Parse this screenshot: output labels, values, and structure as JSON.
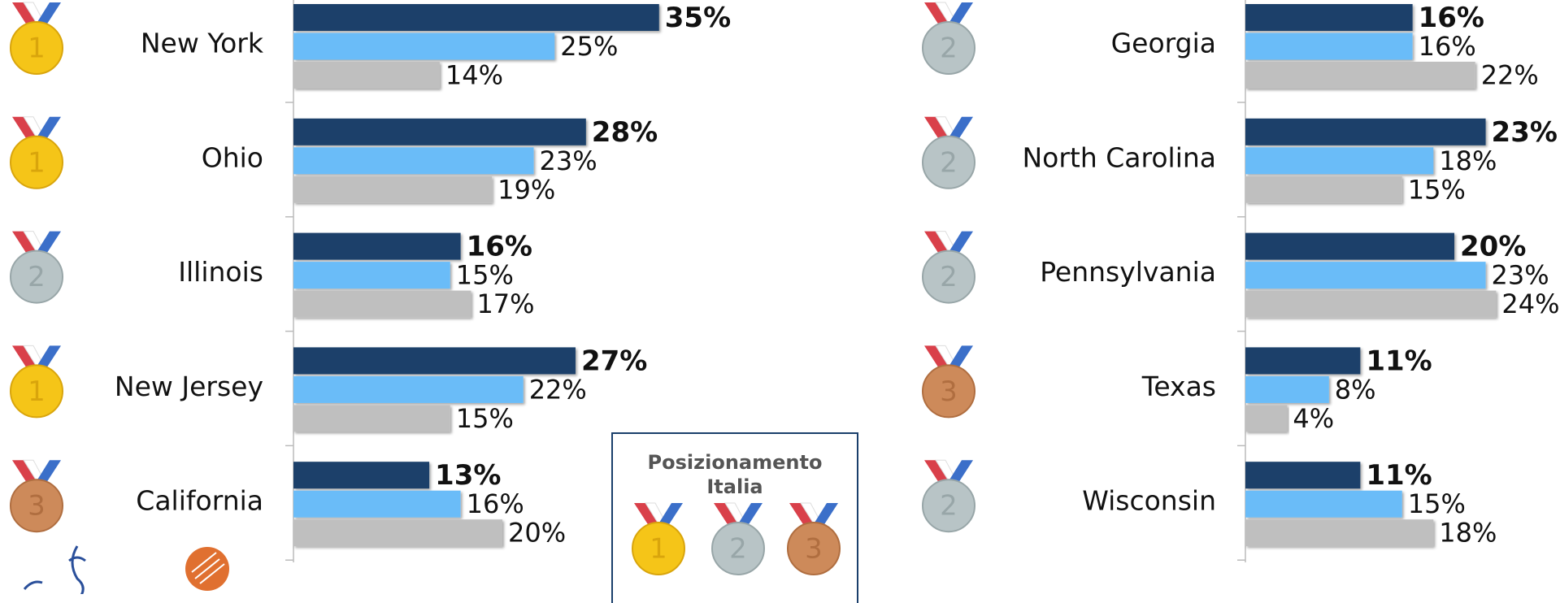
{
  "chart_data": [
    {
      "type": "bar",
      "categories": [
        "New York",
        "Ohio",
        "Illinois",
        "New Jersey",
        "California"
      ],
      "medals": [
        1,
        1,
        2,
        1,
        3
      ],
      "xlim": [
        0,
        40
      ],
      "series": [
        {
          "color": "#1a3f6b",
          "values": [
            35,
            28,
            16,
            27,
            13
          ],
          "value_labels": [
            "35%",
            "28%",
            "16%",
            "27%",
            "13%"
          ]
        },
        {
          "color": "#6bbcf8",
          "values": [
            25,
            23,
            15,
            22,
            16
          ],
          "value_labels": [
            "25%",
            "23%",
            "15%",
            "22%",
            "16%"
          ]
        },
        {
          "color": "#bfbfbf",
          "values": [
            14,
            19,
            17,
            15,
            20
          ],
          "value_labels": [
            "14%",
            "19%",
            "17%",
            "15%",
            "20%"
          ]
        }
      ]
    },
    {
      "type": "bar",
      "categories": [
        "Georgia",
        "North Carolina",
        "Pennsylvania",
        "Texas",
        "Wisconsin"
      ],
      "medals": [
        2,
        2,
        2,
        3,
        2
      ],
      "xlim": [
        0,
        40
      ],
      "series": [
        {
          "color": "#1a3f6b",
          "values": [
            16,
            23,
            20,
            11,
            11
          ],
          "value_labels": [
            "16%",
            "23%",
            "20%",
            "11%",
            "11%"
          ]
        },
        {
          "color": "#6bbcf8",
          "values": [
            16,
            18,
            23,
            8,
            15
          ],
          "value_labels": [
            "16%",
            "18%",
            "23%",
            "8%",
            "15%"
          ]
        },
        {
          "color": "#bfbfbf",
          "values": [
            22,
            15,
            24,
            4,
            18
          ],
          "value_labels": [
            "22%",
            "15%",
            "24%",
            "4%",
            "18%"
          ]
        }
      ]
    }
  ],
  "legend": {
    "title": "Posizionamento Italia",
    "medals": [
      1,
      2,
      3
    ]
  }
}
